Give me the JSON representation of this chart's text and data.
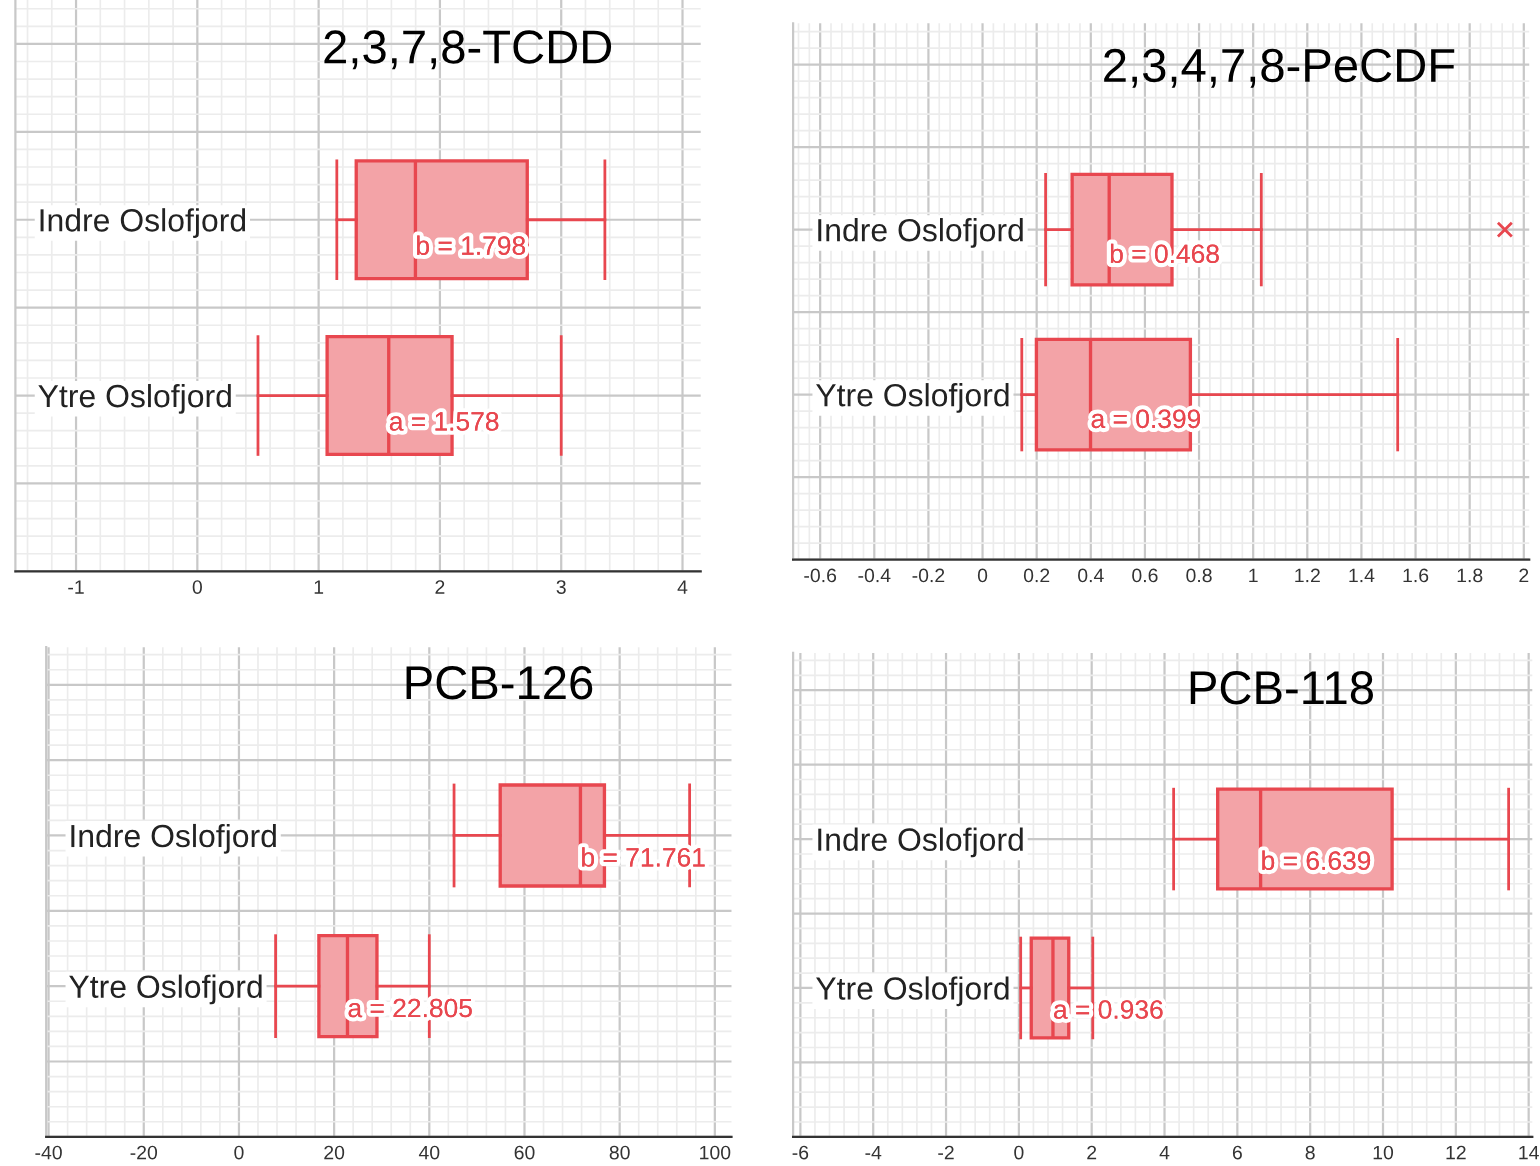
{
  "chart_data": [
    {
      "type": "box",
      "title": "2,3,7,8-TCDD",
      "orientation": "horizontal",
      "categories": [
        "Indre Oslofjord",
        "Ytre Oslofjord"
      ],
      "color": "#e8474f",
      "grid": true,
      "boxes": [
        {
          "low": 1.15,
          "q1": 1.31,
          "median": 1.798,
          "q3": 2.72,
          "high": 3.36
        },
        {
          "low": 0.5,
          "q1": 1.07,
          "median": 1.578,
          "q3": 2.1,
          "high": 3.0
        }
      ],
      "xlim": [
        -1.5,
        4.15
      ],
      "xticks": [
        -1,
        0,
        1,
        2,
        3,
        4
      ],
      "annotations": [
        "b = 1.798",
        "a = 1.578"
      ]
    },
    {
      "type": "box",
      "title": "2,3,4,7,8-PeCDF",
      "orientation": "horizontal",
      "categories": [
        "Indre Oslofjord",
        "Ytre Oslofjord"
      ],
      "color": "#e8474f",
      "grid": true,
      "boxes": [
        {
          "low": 0.233,
          "q1": 0.331,
          "median": 0.468,
          "q3": 0.7,
          "high": 1.03,
          "outliers": [
            1.93
          ]
        },
        {
          "low": 0.145,
          "q1": 0.199,
          "median": 0.399,
          "q3": 0.768,
          "high": 1.534
        }
      ],
      "xlim": [
        -0.7,
        2.02
      ],
      "xticks": [
        -0.6,
        -0.4,
        -0.2,
        0,
        0.2,
        0.4,
        0.6,
        0.8,
        1,
        1.2,
        1.4,
        1.6,
        1.8,
        2
      ],
      "annotations": [
        "b = 0.468",
        "a = 0.399"
      ]
    },
    {
      "type": "box",
      "title": "PCB-126",
      "orientation": "horizontal",
      "categories": [
        "Indre Oslofjord",
        "Ytre Oslofjord"
      ],
      "color": "#e8474f",
      "grid": true,
      "boxes": [
        {
          "low": 45.2,
          "q1": 54.9,
          "median": 71.761,
          "q3": 76.8,
          "high": 94.7
        },
        {
          "low": 7.7,
          "q1": 16.8,
          "median": 22.805,
          "q3": 29.0,
          "high": 40.0
        }
      ],
      "xlim": [
        -40.5,
        103.5
      ],
      "xticks": [
        -40,
        -20,
        0,
        20,
        40,
        60,
        80,
        100
      ],
      "annotations": [
        "b = 71.761",
        "a = 22.805"
      ]
    },
    {
      "type": "box",
      "title": "PCB-118",
      "orientation": "horizontal",
      "categories": [
        "Indre Oslofjord",
        "Ytre Oslofjord"
      ],
      "color": "#e8474f",
      "grid": true,
      "boxes": [
        {
          "low": 4.25,
          "q1": 5.46,
          "median": 6.639,
          "q3": 10.25,
          "high": 13.45
        },
        {
          "low": 0.05,
          "q1": 0.34,
          "median": 0.936,
          "q3": 1.37,
          "high": 2.03
        }
      ],
      "xlim": [
        -6.2,
        14.1
      ],
      "xticks": [
        -6,
        -4,
        -2,
        0,
        2,
        4,
        6,
        8,
        10,
        12,
        14
      ],
      "annotations": [
        "b = 6.639",
        "a = 0.936"
      ]
    }
  ]
}
